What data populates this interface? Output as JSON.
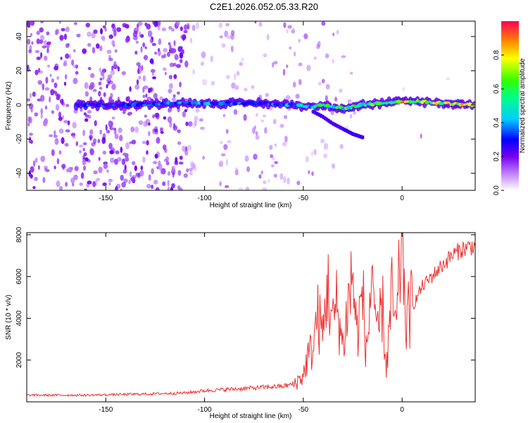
{
  "title": "C2E1.2026.052.05.33.R20",
  "chart_data": [
    {
      "type": "heatmap",
      "xlabel": "Height of straight line (km)",
      "ylabel": "Frequency (Hz)",
      "xlim": [
        -190,
        37
      ],
      "ylim": [
        -50,
        49
      ],
      "xticks": [
        -150,
        -100,
        -50,
        0
      ],
      "yticks": [
        -40,
        -20,
        0,
        20,
        40
      ],
      "colorbar": {
        "label": "Normalized spectral amplitude",
        "ticks": [
          "0.0",
          "0.2",
          "0.4",
          "0.6",
          "0.8"
        ],
        "range": [
          0,
          1
        ]
      },
      "ridge": {
        "x": [
          -165,
          -140,
          -110,
          -90,
          -70,
          -55,
          -45,
          -40,
          -35,
          -30,
          -25,
          -20,
          -10,
          0,
          10,
          20,
          37
        ],
        "y": [
          0,
          0,
          1,
          1,
          1,
          0,
          -1,
          0,
          -1,
          -2,
          -1,
          0,
          1,
          2,
          2,
          1,
          0
        ],
        "amplitude": [
          0.35,
          0.35,
          0.4,
          0.4,
          0.4,
          0.45,
          0.55,
          0.6,
          0.65,
          0.65,
          0.6,
          0.6,
          0.75,
          0.85,
          0.85,
          0.8,
          0.9
        ]
      },
      "branch": {
        "x": [
          -45,
          -40,
          -35,
          -30,
          -25,
          -20
        ],
        "y": [
          -4,
          -7,
          -11,
          -14,
          -17,
          -19
        ]
      }
    },
    {
      "type": "line",
      "xlabel": "Height of straight line (km)",
      "ylabel": "SNR (10 * v/v)",
      "xlim": [
        -190,
        37
      ],
      "ylim": [
        0,
        8100
      ],
      "xticks": [
        -150,
        -100,
        -50,
        0
      ],
      "yticks": [
        2000,
        4000,
        6000,
        8000
      ],
      "series": [
        {
          "name": "SNR",
          "color": "#ee3333",
          "x": [
            -190,
            -160,
            -130,
            -110,
            -100,
            -80,
            -60,
            -55,
            -50,
            -48,
            -45,
            -43,
            -40,
            -38,
            -35,
            -33,
            -30,
            -28,
            -25,
            -23,
            -20,
            -18,
            -15,
            -13,
            -10,
            -8,
            -5,
            -3,
            0,
            2,
            5,
            10,
            15,
            20,
            25,
            30,
            37
          ],
          "y": [
            300,
            300,
            350,
            400,
            500,
            600,
            700,
            800,
            1200,
            2000,
            2500,
            4000,
            3000,
            5500,
            3500,
            4500,
            2500,
            4000,
            6000,
            3000,
            5000,
            2000,
            6500,
            2500,
            4500,
            1500,
            5000,
            3000,
            8100,
            3500,
            4500,
            5500,
            6000,
            6500,
            7000,
            7300,
            7500
          ]
        }
      ]
    }
  ]
}
